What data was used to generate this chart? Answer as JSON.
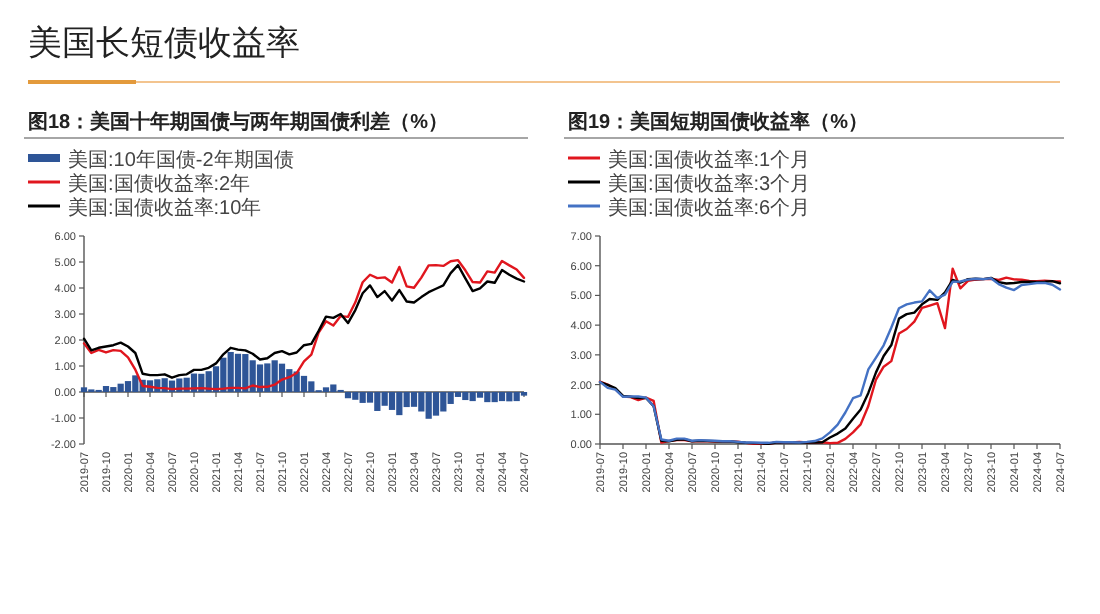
{
  "chart_data": [
    {
      "type": "line",
      "title": "美国长短债收益率",
      "subtitle": "图18：美国十年期国债与两年期国债利差（%）",
      "legend": "top",
      "x": [
        "2019-07",
        "2019-08",
        "2019-09",
        "2019-10",
        "2019-11",
        "2019-12",
        "2020-01",
        "2020-02",
        "2020-03",
        "2020-04",
        "2020-05",
        "2020-06",
        "2020-07",
        "2020-08",
        "2020-09",
        "2020-10",
        "2020-11",
        "2020-12",
        "2021-01",
        "2021-02",
        "2021-03",
        "2021-04",
        "2021-05",
        "2021-06",
        "2021-07",
        "2021-08",
        "2021-09",
        "2021-10",
        "2021-11",
        "2021-12",
        "2022-01",
        "2022-02",
        "2022-03",
        "2022-04",
        "2022-05",
        "2022-06",
        "2022-07",
        "2022-08",
        "2022-09",
        "2022-10",
        "2022-11",
        "2022-12",
        "2023-01",
        "2023-02",
        "2023-03",
        "2023-04",
        "2023-05",
        "2023-06",
        "2023-07",
        "2023-08",
        "2023-09",
        "2023-10",
        "2023-11",
        "2023-12",
        "2024-01",
        "2024-02",
        "2024-03",
        "2024-04",
        "2024-05",
        "2024-06",
        "2024-07"
      ],
      "series": [
        {
          "name": "美国:10年国债-2年期国债",
          "type": "bar",
          "color": "#2e5597",
          "values": [
            0.18,
            0.1,
            0.08,
            0.23,
            0.19,
            0.32,
            0.42,
            0.64,
            0.47,
            0.45,
            0.49,
            0.53,
            0.44,
            0.52,
            0.55,
            0.71,
            0.7,
            0.8,
            0.99,
            1.32,
            1.54,
            1.47,
            1.46,
            1.22,
            1.06,
            1.1,
            1.22,
            1.09,
            0.88,
            0.79,
            0.62,
            0.41,
            0.07,
            0.18,
            0.29,
            0.08,
            -0.24,
            -0.3,
            -0.42,
            -0.41,
            -0.73,
            -0.53,
            -0.69,
            -0.89,
            -0.58,
            -0.57,
            -0.75,
            -1.03,
            -0.91,
            -0.75,
            -0.46,
            -0.19,
            -0.31,
            -0.35,
            -0.22,
            -0.39,
            -0.39,
            -0.35,
            -0.36,
            -0.35,
            -0.14
          ]
        },
        {
          "name": "美国:国债收益率:2年",
          "color": "#e0161e",
          "values": [
            1.87,
            1.5,
            1.62,
            1.52,
            1.61,
            1.58,
            1.33,
            0.86,
            0.23,
            0.2,
            0.16,
            0.15,
            0.11,
            0.13,
            0.13,
            0.14,
            0.15,
            0.13,
            0.11,
            0.13,
            0.16,
            0.16,
            0.14,
            0.25,
            0.19,
            0.2,
            0.28,
            0.48,
            0.57,
            0.73,
            1.18,
            1.44,
            2.28,
            2.72,
            2.56,
            2.92,
            2.89,
            3.45,
            4.22,
            4.51,
            4.38,
            4.41,
            4.21,
            4.81,
            4.06,
            4.01,
            4.4,
            4.87,
            4.88,
            4.85,
            5.03,
            5.07,
            4.68,
            4.23,
            4.21,
            4.64,
            4.59,
            5.04,
            4.87,
            4.71,
            4.39
          ]
        },
        {
          "name": "美国:国债收益率:10年",
          "color": "#000000",
          "values": [
            2.05,
            1.6,
            1.7,
            1.75,
            1.8,
            1.9,
            1.75,
            1.5,
            0.7,
            0.65,
            0.65,
            0.68,
            0.55,
            0.65,
            0.68,
            0.85,
            0.85,
            0.93,
            1.1,
            1.45,
            1.7,
            1.63,
            1.6,
            1.47,
            1.25,
            1.3,
            1.5,
            1.57,
            1.45,
            1.52,
            1.8,
            1.85,
            2.35,
            2.9,
            2.85,
            3.0,
            2.65,
            3.15,
            3.8,
            4.1,
            3.65,
            3.88,
            3.52,
            3.92,
            3.48,
            3.44,
            3.65,
            3.84,
            3.97,
            4.1,
            4.57,
            4.88,
            4.37,
            3.88,
            3.99,
            4.25,
            4.2,
            4.69,
            4.51,
            4.36,
            4.25
          ]
        }
      ],
      "xlim": [
        "2019-07",
        "2024-07"
      ],
      "xticks": [
        "2019-07",
        "2019-10",
        "2020-01",
        "2020-04",
        "2020-07",
        "2020-10",
        "2021-01",
        "2021-04",
        "2021-07",
        "2021-10",
        "2022-01",
        "2022-04",
        "2022-07",
        "2022-10",
        "2023-01",
        "2023-04",
        "2023-07",
        "2023-10",
        "2024-01",
        "2024-04",
        "2024-07"
      ],
      "ylim": [
        -2,
        6
      ],
      "yticks": [
        {
          "value": -2,
          "label": "-2.00"
        },
        {
          "value": -1,
          "label": "-1.00"
        },
        {
          "value": 0,
          "label": "0.00"
        },
        {
          "value": 1,
          "label": "1.00"
        },
        {
          "value": 2,
          "label": "2.00"
        },
        {
          "value": 3,
          "label": "3.00"
        },
        {
          "value": 4,
          "label": "4.00"
        },
        {
          "value": 5,
          "label": "5.00"
        },
        {
          "value": 6,
          "label": "6.00"
        }
      ]
    },
    {
      "type": "line",
      "title": "图19：美国短期国债收益率（%）",
      "legend": "top",
      "x": [
        "2019-07",
        "2019-08",
        "2019-09",
        "2019-10",
        "2019-11",
        "2019-12",
        "2020-01",
        "2020-02",
        "2020-03",
        "2020-04",
        "2020-05",
        "2020-06",
        "2020-07",
        "2020-08",
        "2020-09",
        "2020-10",
        "2020-11",
        "2020-12",
        "2021-01",
        "2021-02",
        "2021-03",
        "2021-04",
        "2021-05",
        "2021-06",
        "2021-07",
        "2021-08",
        "2021-09",
        "2021-10",
        "2021-11",
        "2021-12",
        "2022-01",
        "2022-02",
        "2022-03",
        "2022-04",
        "2022-05",
        "2022-06",
        "2022-07",
        "2022-08",
        "2022-09",
        "2022-10",
        "2022-11",
        "2022-12",
        "2023-01",
        "2023-02",
        "2023-03",
        "2023-04",
        "2023-05",
        "2023-06",
        "2023-07",
        "2023-08",
        "2023-09",
        "2023-10",
        "2023-11",
        "2023-12",
        "2024-01",
        "2024-02",
        "2024-03",
        "2024-04",
        "2024-05",
        "2024-06",
        "2024-07"
      ],
      "series": [
        {
          "name": "美国:国债收益率:1个月",
          "color": "#e0161e",
          "values": [
            2.1,
            2.0,
            1.85,
            1.6,
            1.58,
            1.48,
            1.56,
            1.45,
            0.05,
            0.1,
            0.13,
            0.13,
            0.09,
            0.09,
            0.09,
            0.08,
            0.08,
            0.08,
            0.08,
            0.04,
            0.01,
            0.01,
            0.01,
            0.05,
            0.05,
            0.05,
            0.07,
            0.05,
            0.05,
            0.06,
            0.03,
            0.04,
            0.17,
            0.39,
            0.66,
            1.28,
            2.17,
            2.6,
            2.79,
            3.72,
            3.87,
            4.12,
            4.58,
            4.66,
            4.74,
            3.9,
            5.9,
            5.24,
            5.49,
            5.53,
            5.55,
            5.56,
            5.52,
            5.6,
            5.54,
            5.53,
            5.49,
            5.48,
            5.5,
            5.48,
            5.47
          ]
        },
        {
          "name": "美国:国债收益率:3个月",
          "color": "#000000",
          "values": [
            2.08,
            1.99,
            1.88,
            1.62,
            1.59,
            1.55,
            1.55,
            1.27,
            0.11,
            0.09,
            0.14,
            0.16,
            0.09,
            0.11,
            0.1,
            0.09,
            0.08,
            0.09,
            0.06,
            0.04,
            0.03,
            0.02,
            0.01,
            0.05,
            0.06,
            0.05,
            0.04,
            0.05,
            0.05,
            0.06,
            0.22,
            0.35,
            0.52,
            0.85,
            1.16,
            1.72,
            2.41,
            2.96,
            3.33,
            4.22,
            4.37,
            4.42,
            4.7,
            4.88,
            4.85,
            5.1,
            5.52,
            5.43,
            5.55,
            5.56,
            5.55,
            5.59,
            5.45,
            5.4,
            5.42,
            5.45,
            5.46,
            5.45,
            5.46,
            5.48,
            5.41
          ]
        },
        {
          "name": "美国:国债收益率:6个月",
          "color": "#4472c4",
          "values": [
            2.09,
            1.89,
            1.83,
            1.59,
            1.6,
            1.6,
            1.56,
            1.27,
            0.15,
            0.11,
            0.18,
            0.18,
            0.11,
            0.13,
            0.12,
            0.11,
            0.09,
            0.09,
            0.07,
            0.05,
            0.05,
            0.04,
            0.04,
            0.07,
            0.06,
            0.06,
            0.05,
            0.07,
            0.1,
            0.19,
            0.39,
            0.65,
            1.06,
            1.54,
            1.64,
            2.51,
            2.91,
            3.32,
            3.92,
            4.57,
            4.7,
            4.76,
            4.8,
            5.17,
            4.91,
            5.03,
            5.46,
            5.47,
            5.53,
            5.56,
            5.55,
            5.58,
            5.38,
            5.26,
            5.18,
            5.35,
            5.38,
            5.42,
            5.42,
            5.36,
            5.2
          ]
        }
      ],
      "xlim": [
        "2019-07",
        "2024-07"
      ],
      "xticks": [
        "2019-07",
        "2019-10",
        "2020-01",
        "2020-04",
        "2020-07",
        "2020-10",
        "2021-01",
        "2021-04",
        "2021-07",
        "2021-10",
        "2022-01",
        "2022-04",
        "2022-07",
        "2022-10",
        "2023-01",
        "2023-04",
        "2023-07",
        "2023-10",
        "2024-01",
        "2024-04",
        "2024-07"
      ],
      "ylim": [
        0,
        7
      ],
      "yticks": [
        {
          "value": 0,
          "label": "0.00"
        },
        {
          "value": 1,
          "label": "1.00"
        },
        {
          "value": 2,
          "label": "2.00"
        },
        {
          "value": 3,
          "label": "3.00"
        },
        {
          "value": 4,
          "label": "4.00"
        },
        {
          "value": 5,
          "label": "5.00"
        },
        {
          "value": 6,
          "label": "6.00"
        },
        {
          "value": 7,
          "label": "7.00"
        }
      ]
    }
  ]
}
